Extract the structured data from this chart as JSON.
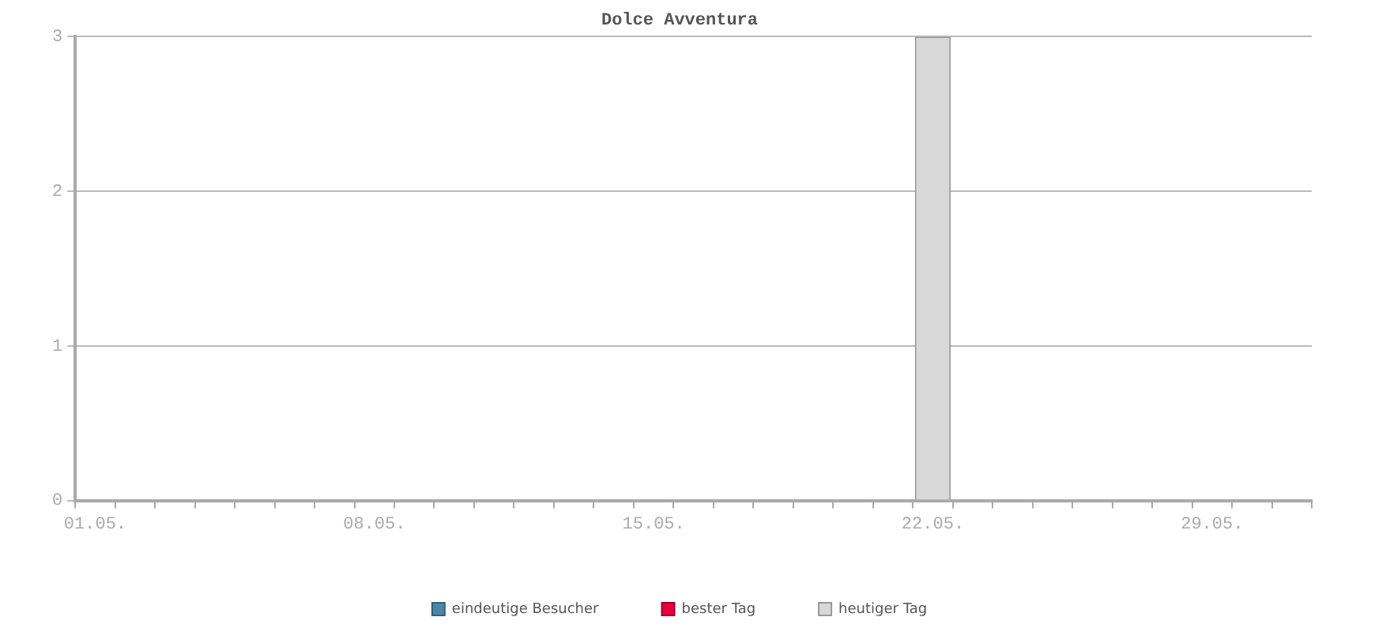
{
  "chart_data": {
    "type": "bar",
    "title": "Dolce Avventura",
    "categories": [
      "01.05.",
      null,
      null,
      null,
      null,
      null,
      null,
      "08.05.",
      null,
      null,
      null,
      null,
      null,
      null,
      "15.05.",
      null,
      null,
      null,
      null,
      null,
      null,
      "22.05.",
      null,
      null,
      null,
      null,
      null,
      null,
      "29.05.",
      null,
      null
    ],
    "series": [
      {
        "name": "eindeutige Besucher",
        "color": "#4a86a8",
        "values": [
          null,
          null,
          null,
          null,
          null,
          null,
          null,
          null,
          null,
          null,
          null,
          null,
          null,
          null,
          null,
          null,
          null,
          null,
          null,
          null,
          null,
          null,
          null,
          null,
          null,
          null,
          null,
          null,
          null,
          null,
          null
        ]
      },
      {
        "name": "bester Tag",
        "color": "#e8003c",
        "values": [
          null,
          null,
          null,
          null,
          null,
          null,
          null,
          null,
          null,
          null,
          null,
          null,
          null,
          null,
          null,
          null,
          null,
          null,
          null,
          null,
          null,
          null,
          null,
          null,
          null,
          null,
          null,
          null,
          null,
          null,
          null
        ]
      },
      {
        "name": "heutiger Tag",
        "color": "#d9d9d9",
        "values": [
          null,
          null,
          null,
          null,
          null,
          null,
          null,
          null,
          null,
          null,
          null,
          null,
          null,
          null,
          null,
          null,
          null,
          null,
          null,
          null,
          null,
          3,
          null,
          null,
          null,
          null,
          null,
          null,
          null,
          null,
          null
        ]
      }
    ],
    "ylim": [
      0,
      3
    ],
    "yticks": [
      0,
      1,
      2,
      3
    ],
    "grid": "y",
    "legend": "bottom"
  }
}
